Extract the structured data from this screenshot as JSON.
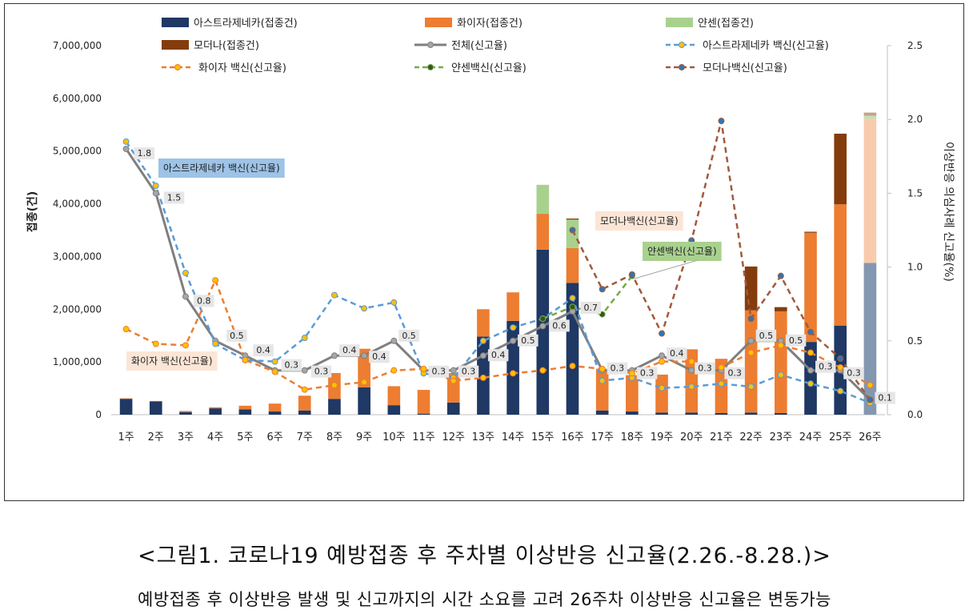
{
  "chart_data": {
    "type": "bar",
    "subtype": "stacked bar + line (dual axis)",
    "categories": [
      "1주",
      "2주",
      "3주",
      "4주",
      "5주",
      "6주",
      "7주",
      "8주",
      "9주",
      "10주",
      "11주",
      "12주",
      "13주",
      "14주",
      "15주",
      "16주",
      "17주",
      "18주",
      "19주",
      "20주",
      "21주",
      "22주",
      "23주",
      "24주",
      "25주",
      "26주"
    ],
    "ylabel": "접종(건)",
    "y2label": "이상반응 의심사례 신고율(%)",
    "ylim": [
      0,
      7000000
    ],
    "y2lim": [
      0,
      2.5
    ],
    "y_ticks": [
      "0",
      "1,000,000",
      "2,000,000",
      "3,000,000",
      "4,000,000",
      "5,000,000",
      "6,000,000",
      "7,000,000"
    ],
    "y2_ticks": [
      "0.0",
      "0.5",
      "1.0",
      "1.5",
      "2.0",
      "2.5"
    ],
    "bar_series": [
      {
        "name": "아스트라제네카(접종건)",
        "color": "#1f3864",
        "values": [
          300000,
          250000,
          50000,
          120000,
          100000,
          60000,
          80000,
          300000,
          520000,
          180000,
          20000,
          230000,
          1480000,
          1780000,
          3130000,
          2500000,
          80000,
          60000,
          40000,
          40000,
          30000,
          40000,
          30000,
          1380000,
          1690000,
          2880000
        ]
      },
      {
        "name": "화이자(접종건)",
        "color": "#ed7d31",
        "values": [
          10000,
          10000,
          20000,
          20000,
          70000,
          150000,
          280000,
          490000,
          730000,
          360000,
          450000,
          560000,
          520000,
          540000,
          680000,
          660000,
          790000,
          690000,
          720000,
          1200000,
          1030000,
          1940000,
          1930000,
          2070000,
          2300000,
          2730000
        ]
      },
      {
        "name": "얀센(접종건)",
        "color": "#a9d18e",
        "values": [
          0,
          0,
          0,
          0,
          0,
          0,
          0,
          0,
          0,
          0,
          0,
          0,
          0,
          0,
          550000,
          540000,
          0,
          0,
          0,
          0,
          0,
          0,
          0,
          0,
          0,
          60000
        ]
      },
      {
        "name": "모더나(접종건)",
        "color": "#843c0c",
        "values": [
          0,
          0,
          0,
          0,
          0,
          0,
          0,
          0,
          0,
          0,
          0,
          0,
          0,
          0,
          0,
          20000,
          0,
          0,
          0,
          0,
          0,
          830000,
          80000,
          20000,
          1340000,
          60000
        ]
      }
    ],
    "line_series": [
      {
        "name": "전체(신고율)",
        "color": "#7f7f7f",
        "style": "solid",
        "values": [
          1.8,
          1.5,
          0.8,
          0.5,
          0.4,
          0.3,
          0.3,
          0.4,
          0.4,
          0.5,
          0.3,
          0.3,
          0.4,
          0.5,
          0.6,
          0.7,
          0.3,
          0.3,
          0.4,
          0.3,
          0.3,
          0.5,
          0.5,
          0.3,
          0.3,
          0.1
        ]
      },
      {
        "name": "아스트라제네카 백신(신고율)",
        "color": "#5b9bd5",
        "style": "dashed",
        "values": [
          1.85,
          1.55,
          0.96,
          0.48,
          0.37,
          0.36,
          0.52,
          0.81,
          0.72,
          0.76,
          0.28,
          0.25,
          0.5,
          0.59,
          0.65,
          0.79,
          0.23,
          0.25,
          0.18,
          0.19,
          0.21,
          0.19,
          0.27,
          0.21,
          0.16,
          0.08
        ]
      },
      {
        "name": "화이자 백신(신고율)",
        "color": "#ed7d31",
        "style": "dashed",
        "values": [
          0.58,
          0.48,
          0.47,
          0.91,
          0.37,
          0.29,
          0.17,
          0.2,
          0.22,
          0.3,
          0.31,
          0.23,
          0.25,
          0.28,
          0.3,
          0.33,
          0.31,
          0.28,
          0.36,
          0.36,
          0.32,
          0.42,
          0.47,
          0.42,
          0.32,
          0.2
        ]
      },
      {
        "name": "얀센백신(신고율)",
        "color": "#70ad47",
        "style": "dashed",
        "values": [
          null,
          null,
          null,
          null,
          null,
          null,
          null,
          null,
          null,
          null,
          null,
          null,
          null,
          null,
          0.65,
          0.73,
          0.68,
          0.94,
          null,
          null,
          null,
          null,
          null,
          null,
          null,
          null
        ]
      },
      {
        "name": "모더나백신(신고율)",
        "color": "#a05a3c",
        "style": "dashed",
        "values": [
          null,
          null,
          null,
          null,
          null,
          null,
          null,
          null,
          null,
          null,
          null,
          null,
          null,
          null,
          null,
          1.25,
          0.85,
          0.95,
          0.55,
          1.18,
          1.99,
          0.65,
          0.94,
          0.56,
          0.38,
          0.1
        ]
      }
    ],
    "data_labels": [
      {
        "series": "전체(신고율)",
        "week": "1주",
        "text": "1.8"
      },
      {
        "series": "전체(신고율)",
        "week": "2주",
        "text": "1.5"
      },
      {
        "series": "전체(신고율)",
        "week": "3주",
        "text": "0.8"
      },
      {
        "series": "전체(신고율)",
        "week": "4주",
        "text": "0.5"
      },
      {
        "series": "전체(신고율)",
        "week": "5주",
        "text": "0.4"
      },
      {
        "series": "전체(신고율)",
        "week": "6주",
        "text": "0.3"
      },
      {
        "series": "전체(신고율)",
        "week": "7주",
        "text": "0.3"
      },
      {
        "series": "전체(신고율)",
        "week": "8주",
        "text": "0.4"
      },
      {
        "series": "전체(신고율)",
        "week": "9주",
        "text": "0.4"
      },
      {
        "series": "전체(신고율)",
        "week": "10주",
        "text": "0.5"
      },
      {
        "series": "전체(신고율)",
        "week": "11주",
        "text": "0.3"
      },
      {
        "series": "전체(신고율)",
        "week": "12주",
        "text": "0.3"
      },
      {
        "series": "전체(신고율)",
        "week": "13주",
        "text": "0.4"
      },
      {
        "series": "전체(신고율)",
        "week": "14주",
        "text": "0.5"
      },
      {
        "series": "전체(신고율)",
        "week": "15주",
        "text": "0.6"
      },
      {
        "series": "전체(신고율)",
        "week": "16주",
        "text": "0.7"
      },
      {
        "series": "전체(신고율)",
        "week": "17주",
        "text": "0.3"
      },
      {
        "series": "전체(신고율)",
        "week": "18주",
        "text": "0.3"
      },
      {
        "series": "전체(신고율)",
        "week": "19주",
        "text": "0.4"
      },
      {
        "series": "전체(신고율)",
        "week": "20주",
        "text": "0.3"
      },
      {
        "series": "전체(신고율)",
        "week": "21주",
        "text": "0.3"
      },
      {
        "series": "전체(신고율)",
        "week": "22주",
        "text": "0.5"
      },
      {
        "series": "전체(신고율)",
        "week": "23주",
        "text": "0.5"
      },
      {
        "series": "전체(신고율)",
        "week": "24주",
        "text": "0.3"
      },
      {
        "series": "전체(신고율)",
        "week": "25주",
        "text": "0.3"
      },
      {
        "series": "전체(신고율)",
        "week": "26주",
        "text": "0.1"
      }
    ],
    "annotations": [
      {
        "text": "아스트라제네카 백신(신고율)",
        "bg": "#9dc3e6"
      },
      {
        "text": "화이자 백신(신고율)",
        "bg": "#fbe5d6"
      },
      {
        "text": "모더나백신(신고율)",
        "bg": "#fbe5d6"
      },
      {
        "text": "얀센백신(신고율)",
        "bg": "#a9d18e"
      }
    ],
    "legend_position": "top"
  },
  "caption": "<그림1. 코로나19 예방접종 후 주차별 이상반응 신고율(2.26.-8.28.)>",
  "note": "예방접종 후 이상반응 발생 및 신고까지의 시간 소요를 고려 26주차 이상반응 신고율은 변동가능"
}
